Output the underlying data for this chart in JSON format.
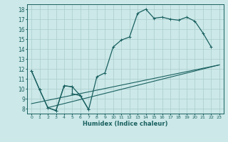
{
  "xlabel": "Humidex (Indice chaleur)",
  "bg_color": "#cce8e8",
  "grid_color": "#aacccc",
  "line_color": "#1a6060",
  "xlim": [
    -0.5,
    23.5
  ],
  "ylim": [
    7.5,
    18.5
  ],
  "yticks": [
    8,
    9,
    10,
    11,
    12,
    13,
    14,
    15,
    16,
    17,
    18
  ],
  "xticks": [
    0,
    1,
    2,
    3,
    4,
    5,
    6,
    7,
    8,
    9,
    10,
    11,
    12,
    13,
    14,
    15,
    16,
    17,
    18,
    19,
    20,
    21,
    22,
    23
  ],
  "curve1_x": [
    0,
    1,
    2,
    3,
    4,
    5,
    6,
    7,
    8,
    9,
    10,
    11,
    12,
    13,
    14,
    15,
    16,
    17,
    18,
    19,
    20,
    21,
    22
  ],
  "curve1_y": [
    11.8,
    9.9,
    8.1,
    7.8,
    10.3,
    10.2,
    9.3,
    7.9,
    11.2,
    11.6,
    14.2,
    14.9,
    15.2,
    17.6,
    18.0,
    17.1,
    17.2,
    17.0,
    16.9,
    17.2,
    16.8,
    15.6,
    14.2
  ],
  "line1_x": [
    0,
    23
  ],
  "line1_y": [
    8.5,
    12.4
  ],
  "line2_x": [
    2,
    23
  ],
  "line2_y": [
    8.1,
    12.4
  ],
  "curve2_x": [
    0,
    1,
    2,
    3,
    4,
    5,
    5,
    6,
    7
  ],
  "curve2_y": [
    11.8,
    9.9,
    8.1,
    7.8,
    10.3,
    10.2,
    9.5,
    9.3,
    7.9
  ]
}
